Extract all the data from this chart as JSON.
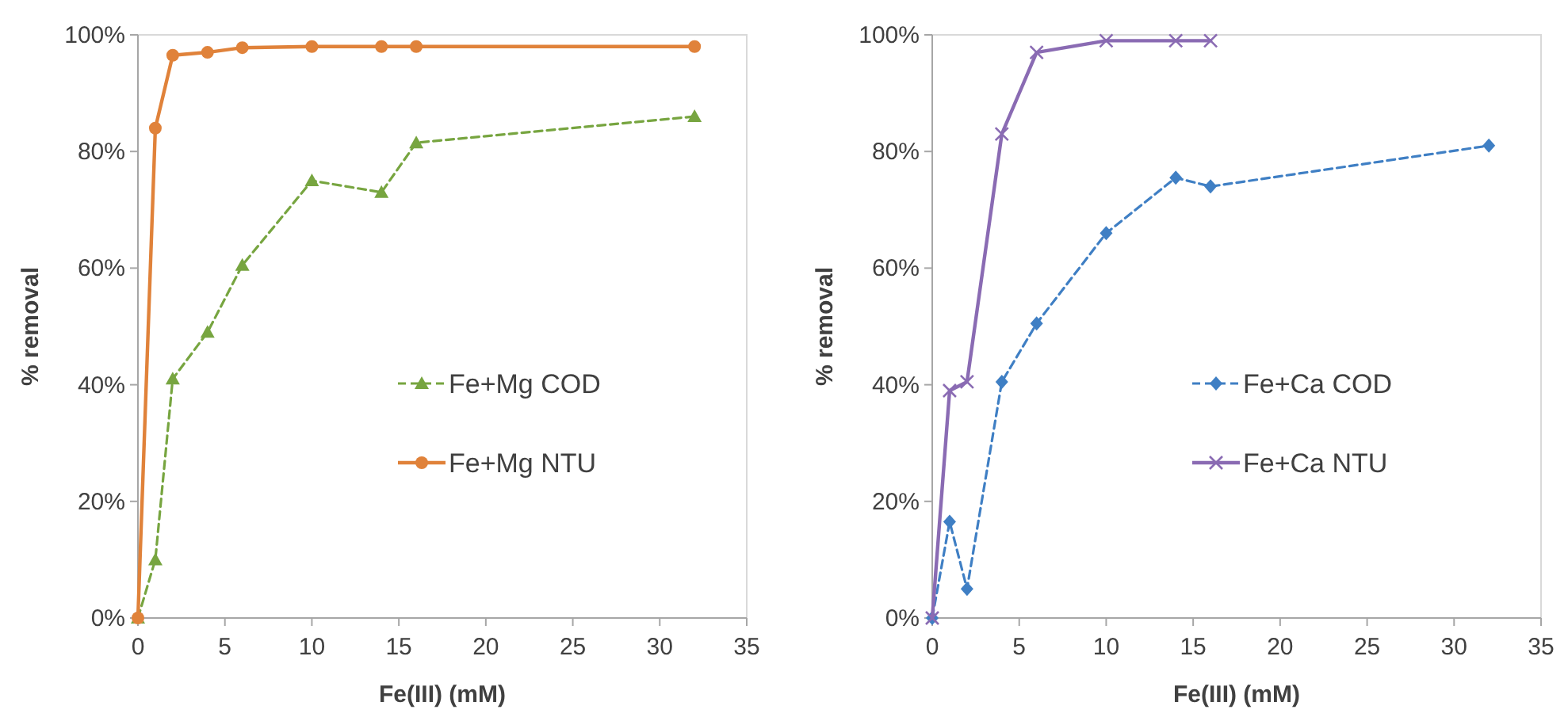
{
  "chart_data": [
    {
      "type": "line",
      "xlabel": "Fe(III) (mM)",
      "ylabel": "% removal",
      "xlim": [
        0,
        35
      ],
      "xticks": [
        0,
        5,
        10,
        15,
        20,
        25,
        30,
        35
      ],
      "ylim": [
        0,
        100
      ],
      "yticks": [
        {
          "value": 0,
          "label": "0%"
        },
        {
          "value": 20,
          "label": "20%"
        },
        {
          "value": 40,
          "label": "40%"
        },
        {
          "value": 60,
          "label": "60%"
        },
        {
          "value": 80,
          "label": "80%"
        },
        {
          "value": 100,
          "label": "100%"
        }
      ],
      "grid": false,
      "legend": "right",
      "x": [
        0,
        1,
        2,
        4,
        6,
        10,
        14,
        16,
        32
      ],
      "series": [
        {
          "name": "Fe+Mg COD",
          "color": "#77a540",
          "marker": "triangle",
          "line_style": "dashed",
          "values": [
            0,
            10,
            41,
            49,
            60.5,
            75,
            73,
            81.5,
            86
          ]
        },
        {
          "name": "Fe+Mg NTU",
          "color": "#e0823a",
          "marker": "circle",
          "line_style": "solid",
          "values": [
            0,
            84,
            96.5,
            97,
            97.8,
            98,
            98,
            98,
            98
          ]
        }
      ]
    },
    {
      "type": "line",
      "xlabel": "Fe(III) (mM)",
      "ylabel": "% removal",
      "xlim": [
        0,
        35
      ],
      "xticks": [
        0,
        5,
        10,
        15,
        20,
        25,
        30,
        35
      ],
      "ylim": [
        0,
        100
      ],
      "yticks": [
        {
          "value": 0,
          "label": "0%"
        },
        {
          "value": 20,
          "label": "20%"
        },
        {
          "value": 40,
          "label": "40%"
        },
        {
          "value": 60,
          "label": "60%"
        },
        {
          "value": 80,
          "label": "80%"
        },
        {
          "value": 100,
          "label": "100%"
        }
      ],
      "grid": false,
      "legend": "right",
      "x": [
        0,
        1,
        2,
        4,
        6,
        10,
        14,
        16,
        32
      ],
      "series": [
        {
          "name": "Fe+Ca COD",
          "color": "#3f7fc4",
          "marker": "diamond",
          "line_style": "dashed",
          "values": [
            0,
            16.5,
            5,
            40.5,
            50.5,
            66,
            75.5,
            74,
            81
          ]
        },
        {
          "name": "Fe+Ca NTU",
          "color": "#8a6bb3",
          "marker": "cross",
          "line_style": "solid",
          "x": [
            0,
            1,
            2,
            4,
            6,
            10,
            14,
            16
          ],
          "values": [
            0,
            39,
            40.5,
            83,
            97,
            99,
            99,
            99
          ]
        }
      ]
    }
  ]
}
